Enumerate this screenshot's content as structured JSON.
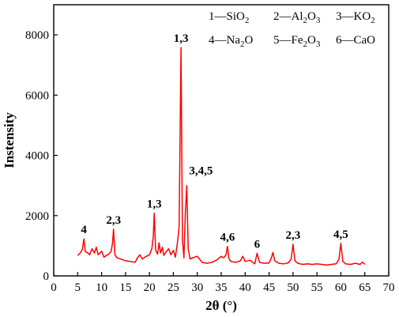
{
  "chart_data": {
    "type": "line",
    "title": "",
    "xlabel": "2θ (°)",
    "ylabel": "Instensity",
    "xlim": [
      0,
      70
    ],
    "ylim": [
      0,
      9000
    ],
    "x_ticks": [
      "0",
      "5",
      "10",
      "15",
      "20",
      "25",
      "30",
      "35",
      "40",
      "45",
      "50",
      "55",
      "60",
      "65",
      "70"
    ],
    "y_ticks": [
      "0",
      "2000",
      "4000",
      "6000",
      "8000"
    ],
    "legend": [
      {
        "num": "1",
        "formula": [
          "SiO",
          "2"
        ]
      },
      {
        "num": "2",
        "formula": [
          "Al",
          "2",
          "O",
          "3"
        ]
      },
      {
        "num": "3",
        "formula": [
          "KO",
          "2"
        ]
      },
      {
        "num": "4",
        "formula": [
          "Na",
          "2",
          "O"
        ]
      },
      {
        "num": "5",
        "formula": [
          "Fe",
          "2",
          "O",
          "3"
        ]
      },
      {
        "num": "6",
        "formula": [
          "CaO"
        ]
      }
    ],
    "series": [
      {
        "color": "#ff0000",
        "x": [
          5.0,
          5.5,
          6.0,
          6.3,
          6.6,
          7.0,
          7.5,
          8.0,
          8.5,
          8.9,
          9.3,
          10.0,
          10.5,
          11.0,
          11.5,
          12.0,
          12.3,
          12.5,
          12.8,
          13.2,
          14.0,
          15.0,
          16.0,
          17.0,
          17.5,
          18.0,
          18.5,
          19.0,
          19.5,
          20.0,
          20.5,
          20.8,
          21.0,
          21.3,
          21.7,
          22.0,
          22.3,
          22.7,
          23.0,
          23.5,
          24.0,
          24.5,
          25.0,
          25.4,
          25.8,
          26.2,
          26.6,
          26.9,
          27.2,
          27.5,
          27.8,
          28.1,
          28.5,
          29.0,
          30.0,
          31.0,
          32.0,
          33.0,
          34.0,
          35.0,
          35.5,
          36.0,
          36.3,
          36.6,
          37.0,
          38.0,
          39.0,
          39.5,
          40.0,
          41.0,
          42.0,
          42.5,
          43.0,
          44.0,
          45.0,
          45.5,
          45.8,
          46.2,
          47.0,
          48.0,
          49.0,
          49.6,
          50.0,
          50.4,
          51.0,
          52.0,
          53.0,
          54.0,
          55.0,
          56.0,
          57.0,
          58.0,
          59.0,
          59.6,
          60.0,
          60.4,
          61.0,
          62.0,
          63.0,
          64.0,
          64.5,
          65.0
        ],
        "y": [
          680,
          750,
          880,
          1230,
          800,
          780,
          700,
          900,
          760,
          950,
          700,
          820,
          620,
          680,
          720,
          820,
          1100,
          1550,
          700,
          600,
          560,
          500,
          480,
          450,
          600,
          700,
          560,
          620,
          660,
          700,
          900,
          1300,
          2080,
          850,
          720,
          1100,
          760,
          950,
          680,
          800,
          900,
          700,
          850,
          620,
          1050,
          1600,
          7580,
          1200,
          600,
          2100,
          3000,
          900,
          560,
          600,
          650,
          450,
          420,
          450,
          520,
          650,
          600,
          700,
          980,
          580,
          480,
          450,
          500,
          650,
          480,
          520,
          400,
          750,
          450,
          420,
          430,
          600,
          780,
          500,
          420,
          400,
          430,
          550,
          1050,
          500,
          420,
          380,
          400,
          380,
          400,
          380,
          360,
          380,
          400,
          550,
          1080,
          480,
          400,
          380,
          420,
          380,
          460,
          380
        ]
      }
    ],
    "annotations": [
      {
        "text": "4",
        "x": 6.3,
        "y": 1230
      },
      {
        "text": "2,3",
        "x": 12.5,
        "y": 1550
      },
      {
        "text": "1,3",
        "x": 21.0,
        "y": 2080
      },
      {
        "text": "1,3",
        "x": 26.6,
        "y": 7580
      },
      {
        "text": "3,4,5",
        "x": 27.8,
        "y": 3000
      },
      {
        "text": "4,6",
        "x": 36.3,
        "y": 980
      },
      {
        "text": "6",
        "x": 42.5,
        "y": 750
      },
      {
        "text": "2,3",
        "x": 50.0,
        "y": 1050
      },
      {
        "text": "4,5",
        "x": 60.0,
        "y": 1080
      }
    ]
  }
}
